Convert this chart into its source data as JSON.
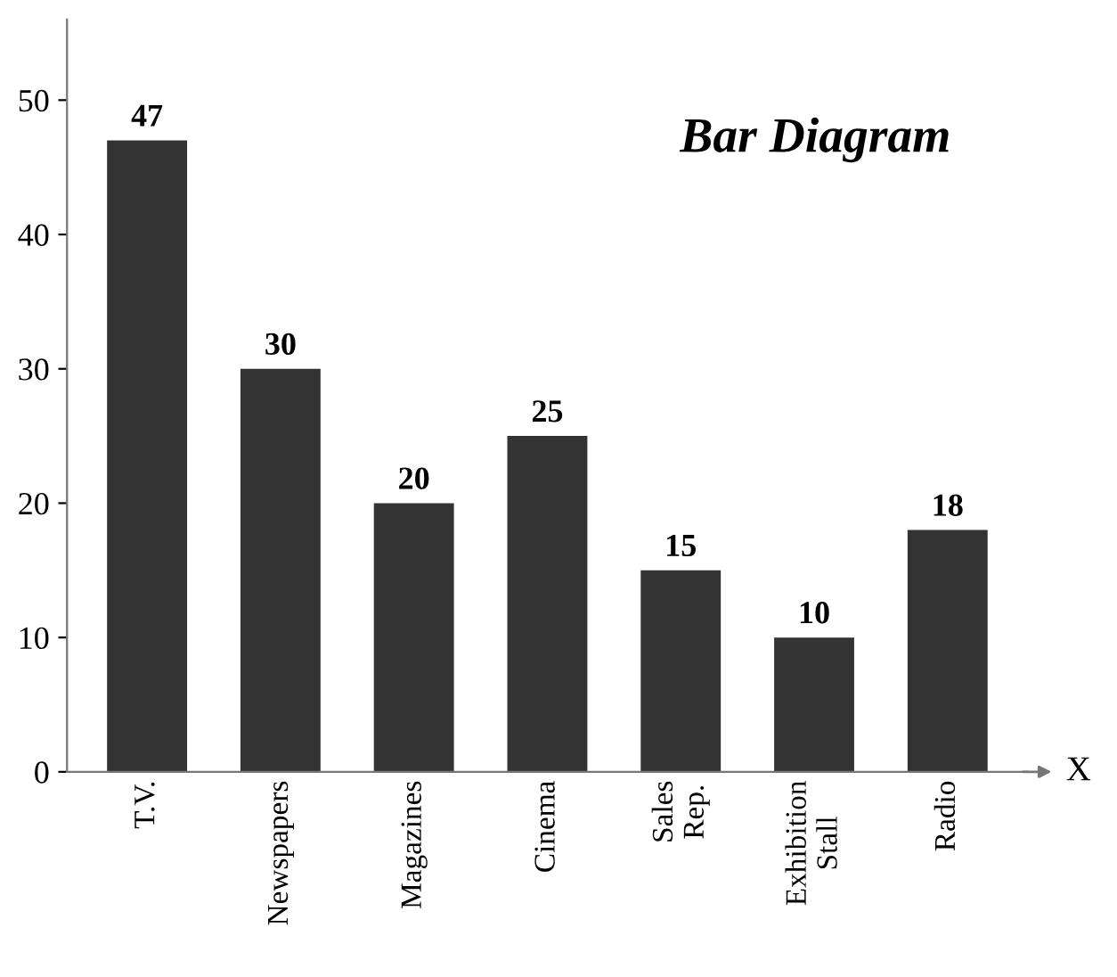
{
  "chart_data": {
    "type": "bar",
    "title": "Bar Diagram",
    "xlabel": "X",
    "categories": [
      "T.V.",
      "Newspapers",
      "Magazines",
      "Cinema",
      "Sales\nRep.",
      "Exhibition\nStall",
      "Radio"
    ],
    "values": [
      47,
      30,
      20,
      25,
      15,
      10,
      18
    ],
    "color": "#333333",
    "ylim": [
      0,
      56
    ],
    "yticks": [
      0,
      10,
      20,
      30,
      40,
      50
    ],
    "data_labels": true,
    "grid": false,
    "legend": false
  }
}
